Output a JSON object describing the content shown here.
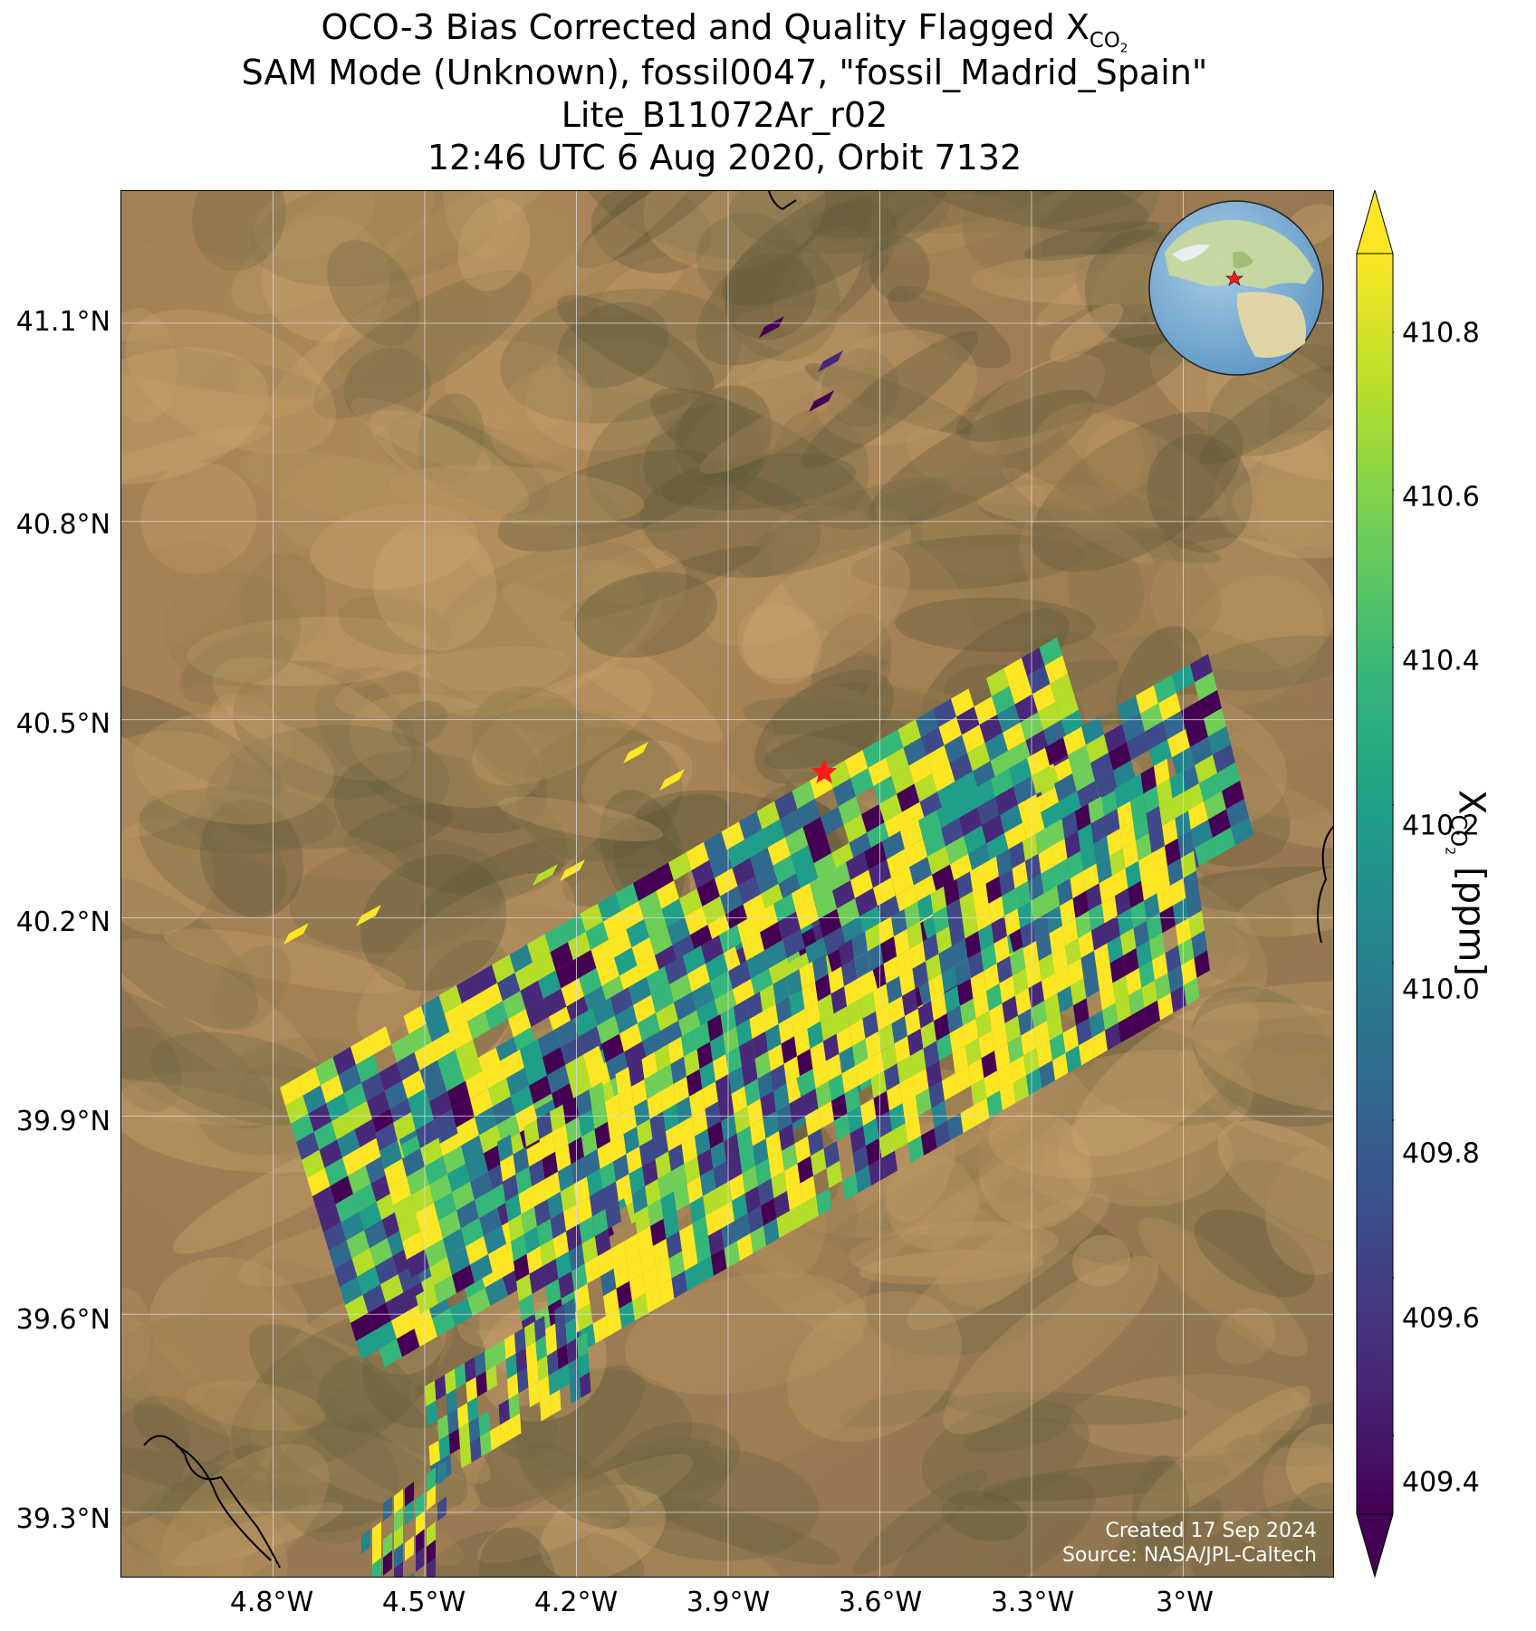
{
  "title": {
    "line1": "OCO-3 Bias Corrected and Quality Flagged X",
    "line1_sub": "CO",
    "line1_subsub": "2",
    "line2": "SAM Mode (Unknown), fossil0047, \"fossil_Madrid_Spain\"",
    "line3": "Lite_B11072Ar_r02",
    "line4": "12:46 UTC 6 Aug 2020, Orbit 7132"
  },
  "map": {
    "lat_labels": [
      "41.1°N",
      "40.8°N",
      "40.5°N",
      "40.2°N",
      "39.9°N",
      "39.6°N",
      "39.3°N"
    ],
    "lon_labels": [
      "4.8°W",
      "4.5°W",
      "4.2°W",
      "3.9°W",
      "3.6°W",
      "3.3°W",
      "3°W"
    ],
    "lat_range": [
      39.2,
      41.3
    ],
    "lon_range": [
      -5.1,
      -2.7
    ],
    "grid": true,
    "target": {
      "name": "fossil_Madrid_Spain",
      "lat": 40.42,
      "lon": -3.71,
      "marker": "red-star"
    },
    "credit_line1": "Created 17 Sep 2024",
    "credit_line2": "Source: NASA/JPL-Caltech",
    "inset": "globe-locator-europe"
  },
  "colorbar": {
    "colormap": "viridis",
    "ticks": [
      "410.8",
      "410.6",
      "410.4",
      "410.2",
      "410.0",
      "409.8",
      "409.6",
      "409.4"
    ],
    "range": [
      409.3,
      410.9
    ],
    "label_main": "X",
    "label_sub": "CO",
    "label_subsub": "2",
    "label_unit": " [ppm]",
    "extend": "both"
  },
  "colors": {
    "viridis": [
      "#440154",
      "#482878",
      "#3e4989",
      "#31688e",
      "#26828e",
      "#1f9e89",
      "#35b779",
      "#6ece58",
      "#b5de2b",
      "#fde725"
    ],
    "terrain_light": "#c9a06a",
    "terrain_dark": "#5f5a3a",
    "star": "#ff1a1a"
  }
}
